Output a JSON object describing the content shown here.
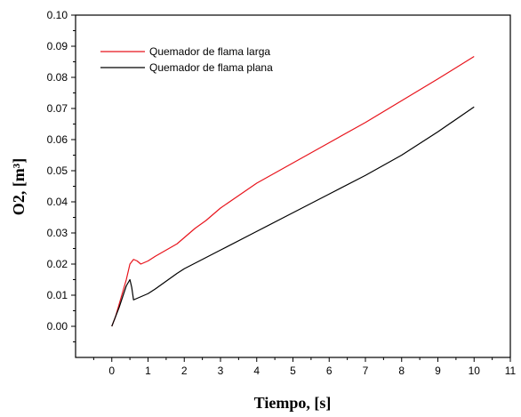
{
  "chart_data": {
    "type": "line",
    "title": "",
    "xlabel": "Tiempo, [s]",
    "ylabel": "O2, [m³]",
    "xlim": [
      -1,
      11
    ],
    "ylim": [
      -0.01,
      0.1
    ],
    "xticks": [
      0,
      1,
      2,
      3,
      4,
      5,
      6,
      7,
      8,
      9,
      10,
      11
    ],
    "yticks": [
      0.0,
      0.01,
      0.02,
      0.03,
      0.04,
      0.05,
      0.06,
      0.07,
      0.08,
      0.09,
      0.1
    ],
    "ytick_labels": [
      "0.00",
      "0.01",
      "0.02",
      "0.03",
      "0.04",
      "0.05",
      "0.06",
      "0.07",
      "0.08",
      "0.09",
      "0.10"
    ],
    "grid": false,
    "legend_position": "top-left",
    "series": [
      {
        "name": "Quemador de flama larga",
        "color": "#e8141c",
        "x": [
          0,
          0.1,
          0.2,
          0.3,
          0.4,
          0.5,
          0.6,
          0.7,
          0.8,
          0.9,
          1.0,
          1.2,
          1.5,
          1.8,
          2.0,
          2.3,
          2.6,
          3.0,
          3.5,
          4.0,
          5.0,
          6.0,
          7.0,
          8.0,
          9.0,
          10.0
        ],
        "y": [
          0.0,
          0.003,
          0.007,
          0.011,
          0.015,
          0.02,
          0.0215,
          0.021,
          0.02,
          0.0205,
          0.021,
          0.0225,
          0.0245,
          0.0265,
          0.0285,
          0.0315,
          0.034,
          0.038,
          0.042,
          0.046,
          0.0525,
          0.059,
          0.0655,
          0.0725,
          0.0795,
          0.0867
        ]
      },
      {
        "name": "Quemador de flama plana",
        "color": "#000000",
        "x": [
          0,
          0.1,
          0.2,
          0.3,
          0.4,
          0.5,
          0.55,
          0.6,
          0.7,
          0.8,
          1.0,
          1.2,
          1.5,
          1.8,
          2.0,
          2.5,
          3.0,
          4.0,
          5.0,
          6.0,
          7.0,
          8.0,
          9.0,
          10.0
        ],
        "y": [
          0.0,
          0.003,
          0.006,
          0.0095,
          0.013,
          0.015,
          0.0125,
          0.0085,
          0.009,
          0.0095,
          0.0105,
          0.012,
          0.0145,
          0.017,
          0.0185,
          0.0215,
          0.0245,
          0.0305,
          0.0365,
          0.0425,
          0.0485,
          0.055,
          0.0625,
          0.0705
        ]
      }
    ]
  }
}
